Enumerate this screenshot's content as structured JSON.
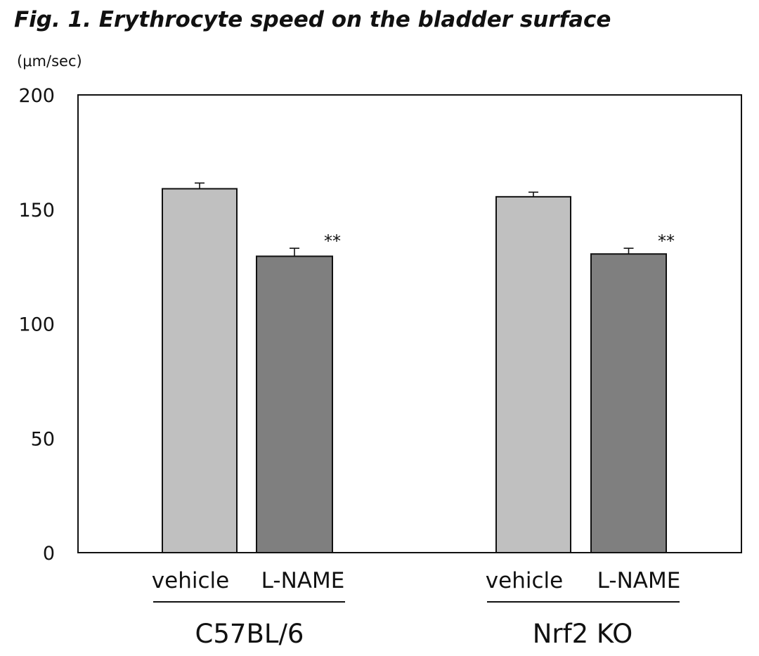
{
  "chart_data": {
    "type": "bar",
    "title": "Fig. 1.  Erythrocyte speed on the bladder surface",
    "ylabel": "(μm/sec)",
    "xlabel": "",
    "ylim": [
      0,
      200
    ],
    "yticks": [
      "0",
      "50",
      "100",
      "150",
      "200"
    ],
    "grid": false,
    "legend": "none",
    "groups": [
      {
        "name": "C57BL/6",
        "bars": [
          {
            "label": "vehicle",
            "value": 159,
            "error": 2.5,
            "color": "#c0c0c0",
            "significance": ""
          },
          {
            "label": "L-NAME",
            "value": 129.5,
            "error": 3.5,
            "color": "#7f7f7f",
            "significance": "**"
          }
        ]
      },
      {
        "name": "Nrf2 KO",
        "bars": [
          {
            "label": "vehicle",
            "value": 155.5,
            "error": 2,
            "color": "#c0c0c0",
            "significance": ""
          },
          {
            "label": "L-NAME",
            "value": 130.5,
            "error": 2.5,
            "color": "#7f7f7f",
            "significance": "**"
          }
        ]
      }
    ]
  }
}
